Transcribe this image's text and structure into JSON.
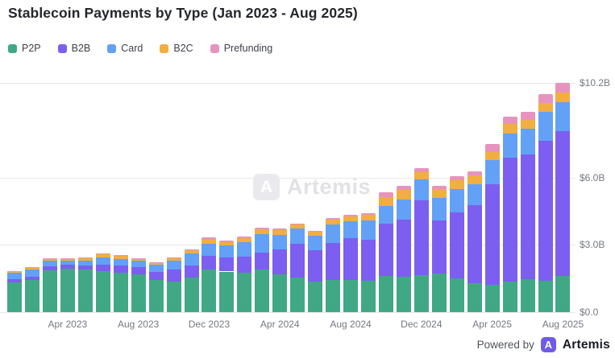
{
  "title": "Stablecoin Payments by Type (Jan 2023 - Aug 2025)",
  "watermark": {
    "logo_letter": "A",
    "text": "Artemis"
  },
  "footer": {
    "powered_by": "Powered by",
    "logo_letter": "A",
    "brand": "Artemis"
  },
  "colors": {
    "background": "#ffffff",
    "gridline": "#e9e9eb",
    "axis_text": "#757981",
    "brand_purple": "#6e5be6"
  },
  "chart_data": {
    "type": "bar",
    "stacked": true,
    "title": "Stablecoin Payments by Type (Jan 2023 - Aug 2025)",
    "x": [
      "Jan 2023",
      "Feb 2023",
      "Mar 2023",
      "Apr 2023",
      "May 2023",
      "Jun 2023",
      "Jul 2023",
      "Aug 2023",
      "Sep 2023",
      "Oct 2023",
      "Nov 2023",
      "Dec 2023",
      "Jan 2024",
      "Feb 2024",
      "Mar 2024",
      "Apr 2024",
      "May 2024",
      "Jun 2024",
      "Jul 2024",
      "Aug 2024",
      "Sep 2024",
      "Oct 2024",
      "Nov 2024",
      "Dec 2024",
      "Jan 2025",
      "Feb 2025",
      "Mar 2025",
      "Apr 2025",
      "May 2025",
      "Jun 2025",
      "Jul 2025",
      "Aug 2025"
    ],
    "series": [
      {
        "name": "P2P",
        "color": "#41a885",
        "values": [
          1.32,
          1.42,
          1.88,
          1.93,
          1.89,
          1.82,
          1.76,
          1.67,
          1.42,
          1.36,
          1.54,
          1.89,
          1.81,
          1.74,
          1.89,
          1.69,
          1.54,
          1.36,
          1.42,
          1.44,
          1.39,
          1.6,
          1.56,
          1.65,
          1.71,
          1.5,
          1.3,
          1.21,
          1.36,
          1.48,
          1.38,
          1.6
        ]
      },
      {
        "name": "B2B",
        "color": "#7c5ff0",
        "values": [
          0.15,
          0.14,
          0.15,
          0.17,
          0.2,
          0.28,
          0.32,
          0.33,
          0.36,
          0.54,
          0.54,
          0.61,
          0.62,
          0.75,
          0.77,
          1.12,
          1.49,
          1.39,
          1.66,
          1.86,
          1.83,
          2.35,
          2.57,
          3.32,
          2.38,
          2.96,
          3.47,
          4.49,
          5.53,
          5.56,
          6.25,
          6.45
        ]
      },
      {
        "name": "Card",
        "color": "#63a1f6",
        "values": [
          0.27,
          0.33,
          0.25,
          0.19,
          0.22,
          0.33,
          0.3,
          0.28,
          0.32,
          0.4,
          0.52,
          0.56,
          0.54,
          0.63,
          0.83,
          0.63,
          0.68,
          0.67,
          0.83,
          0.74,
          0.87,
          0.79,
          0.89,
          0.93,
          0.99,
          1.04,
          0.93,
          1.09,
          1.07,
          1.14,
          1.31,
          1.3
        ]
      },
      {
        "name": "B2C",
        "color": "#f1ae41",
        "values": [
          0.08,
          0.09,
          0.1,
          0.08,
          0.1,
          0.14,
          0.13,
          0.1,
          0.09,
          0.12,
          0.15,
          0.18,
          0.14,
          0.17,
          0.19,
          0.2,
          0.18,
          0.15,
          0.2,
          0.22,
          0.24,
          0.4,
          0.43,
          0.33,
          0.4,
          0.39,
          0.38,
          0.33,
          0.42,
          0.4,
          0.39,
          0.45
        ]
      },
      {
        "name": "Prefunding",
        "color": "#e694bd",
        "values": [
          0.02,
          0.02,
          0.02,
          0.02,
          0.02,
          0.03,
          0.03,
          0.03,
          0.02,
          0.03,
          0.04,
          0.08,
          0.09,
          0.07,
          0.08,
          0.1,
          0.05,
          0.05,
          0.07,
          0.07,
          0.09,
          0.19,
          0.17,
          0.17,
          0.15,
          0.15,
          0.19,
          0.36,
          0.32,
          0.36,
          0.39,
          0.4
        ]
      }
    ],
    "y_ticks": [
      {
        "value": 0,
        "label": "$0.0"
      },
      {
        "value": 3,
        "label": "$3.0B"
      },
      {
        "value": 6,
        "label": "$6.0B"
      },
      {
        "value": 10.2,
        "label": "$10.2B"
      }
    ],
    "x_tick_labels": [
      "Apr 2023",
      "Aug 2023",
      "Dec 2023",
      "Apr 2024",
      "Aug 2024",
      "Dec 2024",
      "Apr 2025",
      "Aug 2025"
    ],
    "x_tick_indices": [
      3,
      7,
      11,
      15,
      19,
      23,
      27,
      31
    ],
    "ylim": [
      0,
      10.45
    ],
    "grid": true,
    "legend_position": "top-left"
  }
}
